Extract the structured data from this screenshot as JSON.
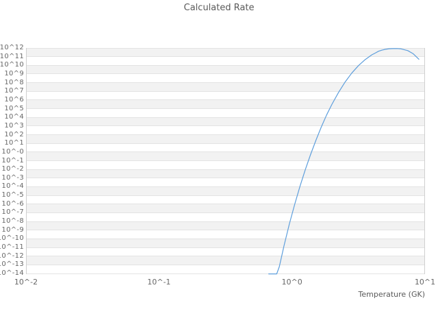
{
  "chart_data": {
    "type": "line",
    "title": "Calculated Rate",
    "xlabel": "Temperature (GK)",
    "ylabel": "",
    "x_scale": "log10",
    "y_scale": "log10",
    "xlim_log10": [
      -2,
      1
    ],
    "ylim_log10": [
      -14,
      12
    ],
    "grid": "horizontal-gridlines-with-alternating-bands",
    "legend": "none",
    "x_tick_labels": [
      "10^-2",
      "10^-1",
      "10^0",
      "10^1"
    ],
    "x_tick_log10": [
      -2,
      -1,
      0,
      1
    ],
    "y_tick_labels": [
      "10^12",
      "10^11",
      "10^10",
      "10^9",
      "10^8",
      "10^7",
      "10^6",
      "10^5",
      "10^4",
      "10^3",
      "10^2",
      "10^1",
      "10^-0",
      "10^-1",
      "10^-2",
      "10^-3",
      "10^-4",
      "10^-5",
      "10^-6",
      "10^-7",
      "10^-8",
      "10^-9",
      "10^-10",
      "10^-11",
      "10^-12",
      "10^-13",
      "10^-14"
    ],
    "y_tick_log10": [
      12,
      11,
      10,
      9,
      8,
      7,
      6,
      5,
      4,
      3,
      2,
      1,
      0,
      -1,
      -2,
      -3,
      -4,
      -5,
      -6,
      -7,
      -8,
      -9,
      -10,
      -11,
      -12,
      -13,
      -14
    ],
    "series": [
      {
        "name": "calculated-rate",
        "color": "#5d9edc",
        "points_log10_T_vs_log10_rate": [
          [
            -0.175,
            -14.05
          ],
          [
            -0.115,
            -14.05
          ],
          [
            -0.095,
            -13.2
          ],
          [
            -0.06,
            -10.8
          ],
          [
            -0.02,
            -8.3
          ],
          [
            0.02,
            -6.05
          ],
          [
            0.06,
            -3.95
          ],
          [
            0.1,
            -2.03
          ],
          [
            0.14,
            -0.27
          ],
          [
            0.18,
            1.36
          ],
          [
            0.22,
            2.88
          ],
          [
            0.26,
            4.27
          ],
          [
            0.3,
            5.5
          ],
          [
            0.35,
            6.88
          ],
          [
            0.4,
            8.09
          ],
          [
            0.45,
            9.12
          ],
          [
            0.5,
            9.97
          ],
          [
            0.55,
            10.66
          ],
          [
            0.6,
            11.21
          ],
          [
            0.625,
            11.41
          ],
          [
            0.65,
            11.62
          ],
          [
            0.675,
            11.75
          ],
          [
            0.7,
            11.84
          ],
          [
            0.73,
            11.91
          ],
          [
            0.76,
            11.93
          ],
          [
            0.79,
            11.935
          ],
          [
            0.82,
            11.9
          ],
          [
            0.87,
            11.7
          ],
          [
            0.91,
            11.35
          ],
          [
            0.954,
            10.7
          ]
        ]
      }
    ]
  },
  "colors": {
    "background": "#ffffff",
    "band_fill": "#f2f2f2",
    "gridline": "#e3e3e3",
    "axis_border": "#cfcfcf",
    "tick_text": "#666666",
    "title_text": "#595959",
    "curve": "#5d9edc"
  }
}
